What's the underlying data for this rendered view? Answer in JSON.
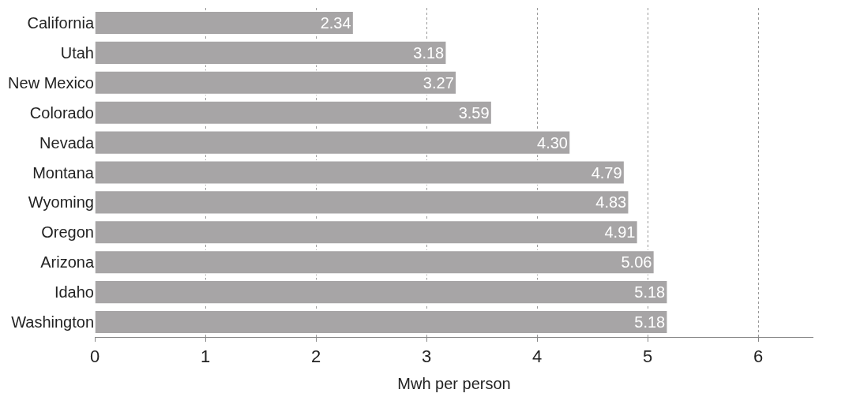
{
  "chart_data": {
    "type": "bar",
    "orientation": "horizontal",
    "xlabel": "Mwh per person",
    "categories": [
      "California",
      "Utah",
      "New Mexico",
      "Colorado",
      "Nevada",
      "Montana",
      "Wyoming",
      "Oregon",
      "Arizona",
      "Idaho",
      "Washington"
    ],
    "values": [
      2.34,
      3.18,
      3.27,
      3.59,
      4.3,
      4.79,
      4.83,
      4.91,
      5.06,
      5.18,
      5.18
    ],
    "value_labels": [
      "2.34",
      "3.18",
      "3.27",
      "3.59",
      "4.30",
      "4.79",
      "4.83",
      "4.91",
      "5.06",
      "5.18",
      "5.18"
    ],
    "color": "#a7a5a6",
    "xlim": [
      0,
      6.5
    ],
    "xticks": [
      0,
      1,
      2,
      3,
      4,
      5,
      6
    ],
    "grid": "x",
    "legend": false
  }
}
